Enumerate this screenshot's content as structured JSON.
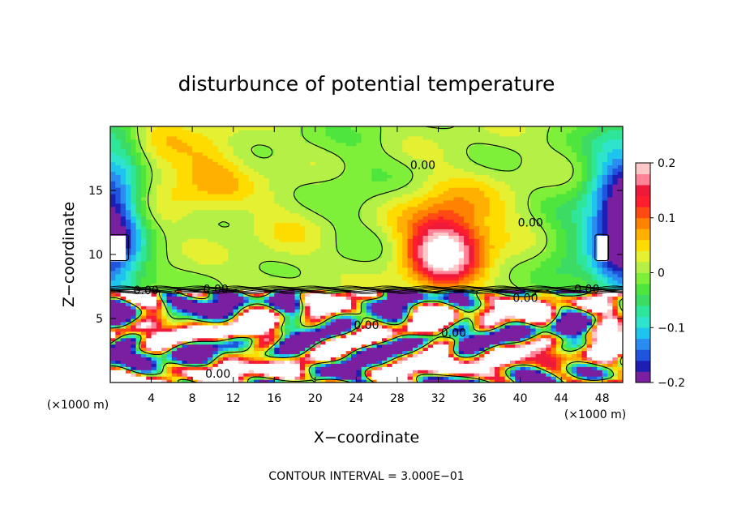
{
  "chart_data": {
    "type": "heatmap",
    "title": "disturbunce of potential temperature",
    "xlabel": "X−coordinate",
    "ylabel": "Z−coordinate",
    "x_unit_label": "(×1000 m)",
    "xlim": [
      0,
      50
    ],
    "ylim": [
      0,
      20
    ],
    "x_ticks": [
      4,
      8,
      12,
      16,
      20,
      24,
      28,
      32,
      36,
      40,
      44,
      48
    ],
    "x_tick_labels": [
      "4",
      "8",
      "12",
      "16",
      "20",
      "24",
      "28",
      "32",
      "36",
      "40",
      "44",
      "48"
    ],
    "y_ticks": [
      5,
      10,
      15
    ],
    "y_tick_labels": [
      "5",
      "10",
      "15"
    ],
    "footer": "CONTOUR INTERVAL = 3.000E−01",
    "colorbar": {
      "min": -0.2,
      "max": 0.2,
      "tick_values": [
        -0.2,
        -0.1,
        0,
        0.1,
        0.2
      ],
      "tick_labels": [
        "−0.2",
        "−0.1",
        "0",
        "0.1",
        "0.2"
      ],
      "colors": [
        "#7a1fa0",
        "#1e1eb4",
        "#1f55dc",
        "#2a8cf0",
        "#1ec3ee",
        "#2ee4cc",
        "#2ee69a",
        "#3cdc64",
        "#4ee63c",
        "#7ef03a",
        "#b4f046",
        "#e6f032",
        "#ffdc00",
        "#ffb000",
        "#ff8200",
        "#ff4a14",
        "#ff1e2e",
        "#ee1a3a",
        "#ff8296",
        "#ffc8c8"
      ]
    },
    "contour_labels": [
      {
        "text": "0.00",
        "x": 30.5,
        "z": 17.0
      },
      {
        "text": "0.00",
        "x": 41.0,
        "z": 12.5
      },
      {
        "text": "0.00",
        "x": 10.3,
        "z": 7.3
      },
      {
        "text": "0.00",
        "x": 3.5,
        "z": 7.2
      },
      {
        "text": "0.00",
        "x": 46.5,
        "z": 7.3
      },
      {
        "text": "0.00",
        "x": 40.5,
        "z": 6.6
      },
      {
        "text": "0.00",
        "x": 25.0,
        "z": 4.5
      },
      {
        "text": "0.00",
        "x": 33.5,
        "z": 3.9
      },
      {
        "text": "0.00",
        "x": 10.5,
        "z": 0.7
      }
    ]
  }
}
